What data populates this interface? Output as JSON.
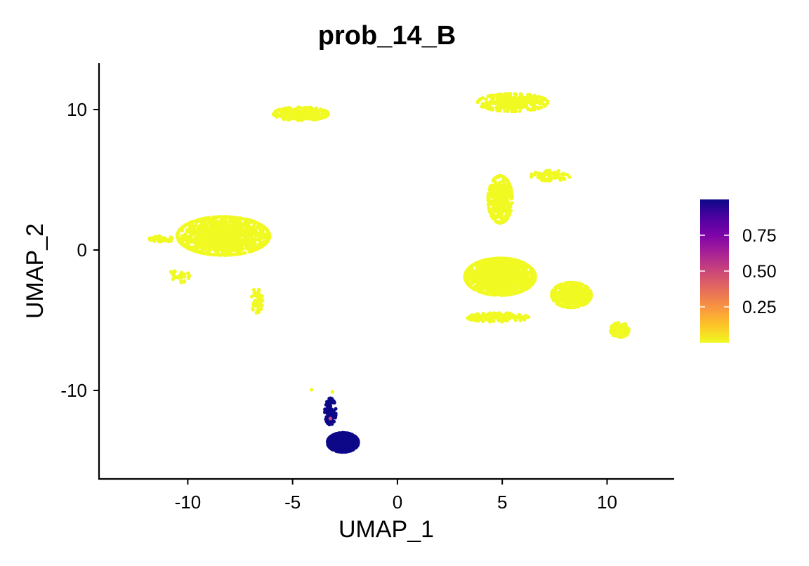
{
  "chart_data": {
    "type": "scatter",
    "title": "prob_14_B",
    "xlabel": "UMAP_1",
    "ylabel": "UMAP_2",
    "xlim": [
      -14.2,
      13.2
    ],
    "ylim": [
      -16.3,
      13.3
    ],
    "xticks": [
      -10,
      -5,
      0,
      5,
      10
    ],
    "xtick_labels": [
      "-10",
      "-5",
      "0",
      "5",
      "10"
    ],
    "yticks": [
      -10,
      0,
      10
    ],
    "ytick_labels": [
      "-10",
      "0",
      "10"
    ],
    "grid": false,
    "legend_position": "right",
    "colorbar": {
      "min": 0.0,
      "max": 1.0,
      "ticks": [
        0.25,
        0.5,
        0.75
      ],
      "tick_labels": [
        "0.25",
        "0.50",
        "0.75"
      ],
      "colors": [
        "#F0F921",
        "#FDC328",
        "#F89441",
        "#E56B5D",
        "#CB4679",
        "#A82296",
        "#7E03A8",
        "#4C02A1",
        "#0D0887"
      ]
    },
    "clusters": [
      {
        "name": "upper-left island",
        "center": [
          -4.6,
          9.7
        ],
        "spread": [
          1.25,
          0.45
        ],
        "n": 260,
        "value": 0.0
      },
      {
        "name": "upper-right island",
        "center": [
          5.5,
          10.5
        ],
        "spread": [
          1.6,
          0.6
        ],
        "n": 320,
        "value": 0.0
      },
      {
        "name": "left large cluster",
        "center": [
          -8.3,
          1.0
        ],
        "spread": [
          2.1,
          1.3
        ],
        "n": 1300,
        "value": 0.0
      },
      {
        "name": "left tail",
        "center": [
          -11.2,
          0.8
        ],
        "spread": [
          0.6,
          0.2
        ],
        "n": 40,
        "value": 0.0
      },
      {
        "name": "lower-left tail",
        "center": [
          -10.4,
          -1.8
        ],
        "spread": [
          0.45,
          0.5
        ],
        "n": 35,
        "value": 0.0
      },
      {
        "name": "left down stem",
        "center": [
          -6.7,
          -3.6
        ],
        "spread": [
          0.25,
          0.9
        ],
        "n": 60,
        "value": 0.0
      },
      {
        "name": "center-right upper stem",
        "center": [
          4.9,
          3.6
        ],
        "spread": [
          0.55,
          1.6
        ],
        "n": 380,
        "value": 0.0
      },
      {
        "name": "right branch",
        "center": [
          7.3,
          5.3
        ],
        "spread": [
          0.9,
          0.35
        ],
        "n": 90,
        "value": 0.0
      },
      {
        "name": "right main cluster",
        "center": [
          4.9,
          -1.9
        ],
        "spread": [
          1.6,
          1.25
        ],
        "n": 1400,
        "value": 0.0
      },
      {
        "name": "right lobe",
        "center": [
          8.3,
          -3.2
        ],
        "spread": [
          0.9,
          0.85
        ],
        "n": 550,
        "value": 0.0
      },
      {
        "name": "lower right bottom arm",
        "center": [
          4.8,
          -4.8
        ],
        "spread": [
          1.4,
          0.3
        ],
        "n": 150,
        "value": 0.0
      },
      {
        "name": "far-right island",
        "center": [
          10.6,
          -5.7
        ],
        "spread": [
          0.42,
          0.5
        ],
        "n": 150,
        "value": 0.0
      },
      {
        "name": "bottom cluster stem",
        "center": [
          -3.2,
          -11.5
        ],
        "spread": [
          0.25,
          0.9
        ],
        "n": 110,
        "value": 1.0
      },
      {
        "name": "bottom cluster main",
        "center": [
          -2.6,
          -13.7
        ],
        "spread": [
          0.7,
          0.65
        ],
        "n": 600,
        "value": 1.0
      }
    ],
    "stray_points": [
      {
        "x": -4.1,
        "y": -9.95,
        "value": 0.0
      },
      {
        "x": -3.1,
        "y": -10.1,
        "value": 0.0
      },
      {
        "x": -3.2,
        "y": -12.0,
        "value": 0.5
      }
    ]
  }
}
